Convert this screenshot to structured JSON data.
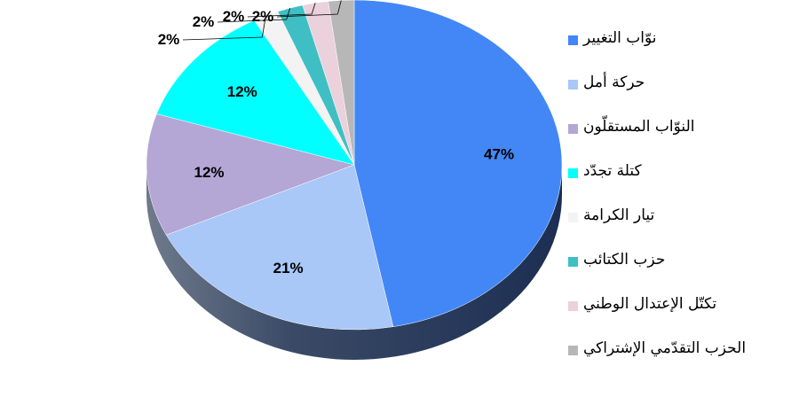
{
  "chart_data": {
    "type": "pie",
    "style": "3d",
    "slices": [
      {
        "label": "نوّاب التغيير",
        "value": 47,
        "value_label": "47%",
        "color": "#4287f5"
      },
      {
        "label": "حركة أمل",
        "value": 21,
        "value_label": "21%",
        "color": "#a9c7f7"
      },
      {
        "label": "النوّاب المستقلّون",
        "value": 12,
        "value_label": "12%",
        "color": "#b4a7d6"
      },
      {
        "label": "كتلة تجدّد",
        "value": 12,
        "value_label": "12%",
        "color": "#00ffff"
      },
      {
        "label": "تيار الكرامة",
        "value": 2,
        "value_label": "2%",
        "color": "#f3f3f3"
      },
      {
        "label": "حزب الكتائب",
        "value": 2,
        "value_label": "2%",
        "color": "#3fbfc4"
      },
      {
        "label": "تكتّل الإعتدال الوطني",
        "value": 2,
        "value_label": "2%",
        "color": "#ead1dc"
      },
      {
        "label": "الحزب التقدّمي الإشتراكي",
        "value": 2,
        "value_label": "2%",
        "color": "#b7b7b7"
      }
    ],
    "legend_position": "right"
  }
}
